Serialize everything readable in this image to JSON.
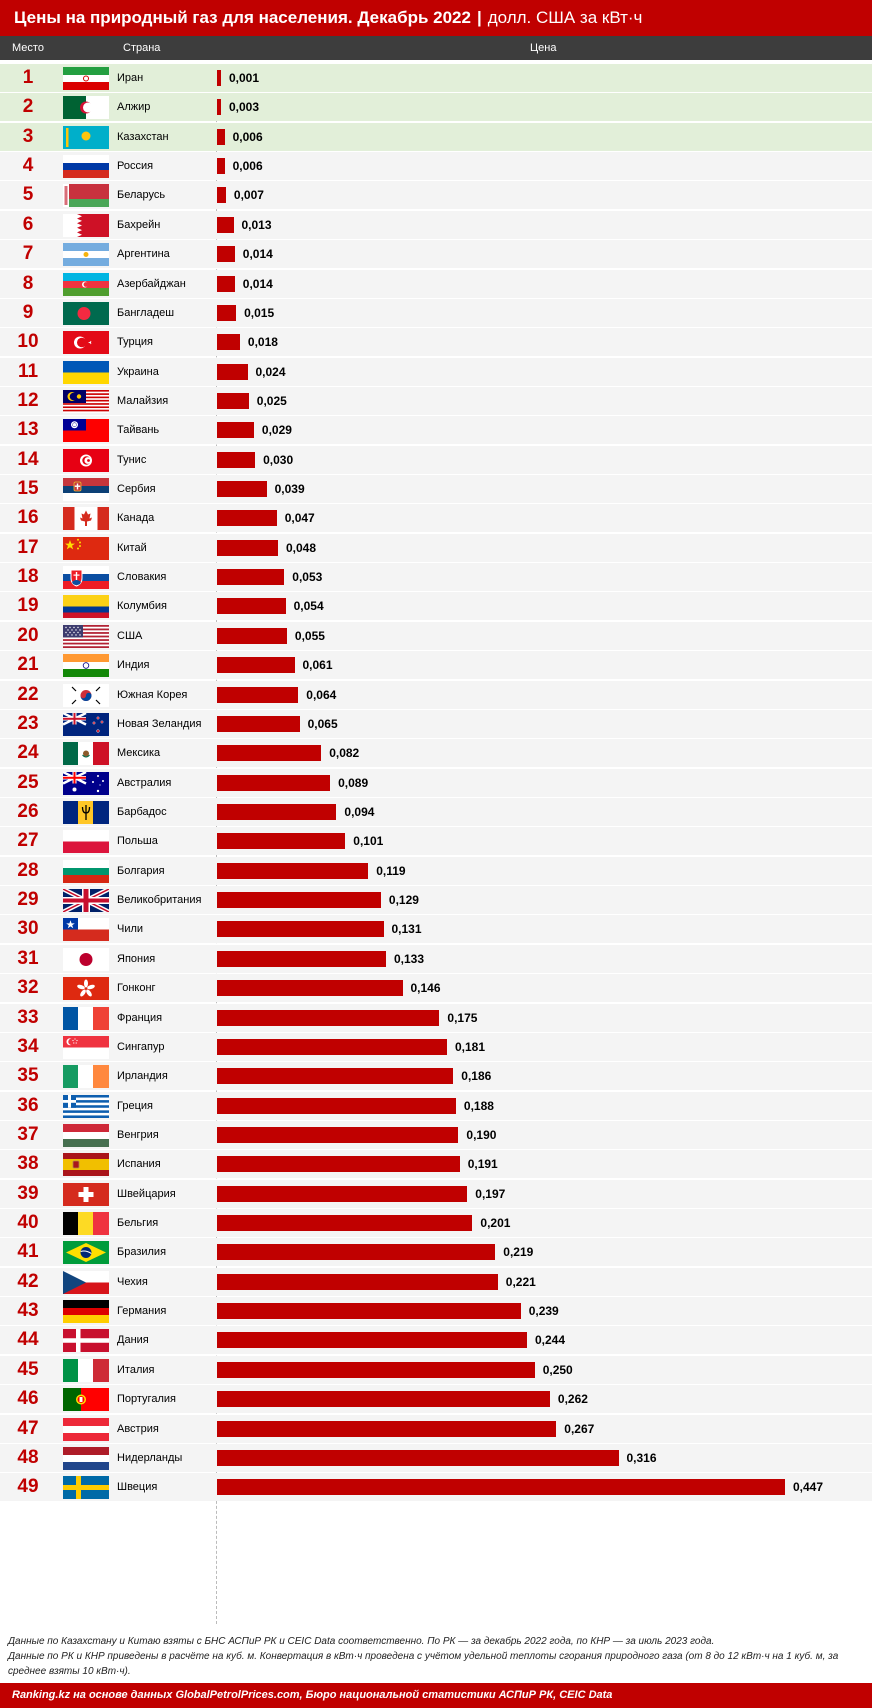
{
  "title": {
    "main": "Цены на природный газ для населения. Декабрь 2022",
    "separator": "|",
    "unit": "долл. США за кВт·ч"
  },
  "header": {
    "rank": "Место",
    "country": "Страна",
    "price": "Цена"
  },
  "chart_data": {
    "type": "bar",
    "orientation": "horizontal",
    "categories": [
      "Иран",
      "Алжир",
      "Казахстан",
      "Россия",
      "Беларусь",
      "Бахрейн",
      "Аргентина",
      "Азербайджан",
      "Бангладеш",
      "Турция",
      "Украина",
      "Малайзия",
      "Тайвань",
      "Тунис",
      "Сербия",
      "Канада",
      "Китай",
      "Словакия",
      "Колумбия",
      "США",
      "Индия",
      "Южная Корея",
      "Новая Зеландия",
      "Мексика",
      "Австралия",
      "Барбадос",
      "Польша",
      "Болгария",
      "Великобритания",
      "Чили",
      "Япония",
      "Гонконг",
      "Франция",
      "Сингапур",
      "Ирландия",
      "Греция",
      "Венгрия",
      "Испания",
      "Швейцария",
      "Бельгия",
      "Бразилия",
      "Чехия",
      "Германия",
      "Дания",
      "Италия",
      "Португалия",
      "Австрия",
      "Нидерланды",
      "Швеция"
    ],
    "values": [
      0.001,
      0.003,
      0.006,
      0.006,
      0.007,
      0.013,
      0.014,
      0.014,
      0.015,
      0.018,
      0.024,
      0.025,
      0.029,
      0.03,
      0.039,
      0.047,
      0.048,
      0.053,
      0.054,
      0.055,
      0.061,
      0.064,
      0.065,
      0.082,
      0.089,
      0.094,
      0.101,
      0.119,
      0.129,
      0.131,
      0.133,
      0.146,
      0.175,
      0.181,
      0.186,
      0.188,
      0.19,
      0.191,
      0.197,
      0.201,
      0.219,
      0.221,
      0.239,
      0.244,
      0.25,
      0.262,
      0.267,
      0.316,
      0.447
    ],
    "labels": [
      "0,001",
      "0,003",
      "0,006",
      "0,006",
      "0,007",
      "0,013",
      "0,014",
      "0,014",
      "0,015",
      "0,018",
      "0,024",
      "0,025",
      "0,029",
      "0,030",
      "0,039",
      "0,047",
      "0,048",
      "0,053",
      "0,054",
      "0,055",
      "0,061",
      "0,064",
      "0,065",
      "0,082",
      "0,089",
      "0,094",
      "0,101",
      "0,119",
      "0,129",
      "0,131",
      "0,133",
      "0,146",
      "0,175",
      "0,181",
      "0,186",
      "0,188",
      "0,190",
      "0,191",
      "0,197",
      "0,201",
      "0,219",
      "0,221",
      "0,239",
      "0,244",
      "0,250",
      "0,262",
      "0,267",
      "0,316",
      "0,447"
    ],
    "ranks": [
      "1",
      "2",
      "3",
      "4",
      "5",
      "6",
      "7",
      "8",
      "9",
      "10",
      "11",
      "12",
      "13",
      "14",
      "15",
      "16",
      "17",
      "18",
      "19",
      "20",
      "21",
      "22",
      "23",
      "24",
      "25",
      "26",
      "27",
      "28",
      "29",
      "30",
      "31",
      "32",
      "33",
      "34",
      "35",
      "36",
      "37",
      "38",
      "39",
      "40",
      "41",
      "42",
      "43",
      "44",
      "45",
      "46",
      "47",
      "48",
      "49"
    ],
    "flags": [
      "ir",
      "dz",
      "kz",
      "ru",
      "by",
      "bh",
      "ar",
      "az",
      "bd",
      "tr",
      "ua",
      "my",
      "tw",
      "tn",
      "rs",
      "ca",
      "cn",
      "sk",
      "co",
      "us",
      "in",
      "kr",
      "nz",
      "mx",
      "au",
      "bb",
      "pl",
      "bg",
      "gb",
      "cl",
      "jp",
      "hk",
      "fr",
      "sg",
      "ie",
      "gr",
      "hu",
      "es",
      "ch",
      "be",
      "br",
      "cz",
      "de",
      "dk",
      "it",
      "pt",
      "at",
      "nl",
      "se"
    ],
    "highlighted_top": 3,
    "xlim": [
      0,
      0.447
    ],
    "bar_color": "#c00000",
    "highlight_color": "#e2efd9",
    "grid": false
  },
  "notes": {
    "line1": "Данные по Казахстану и Китаю взяты с БНС АСПиР РК и CEIC Data соответственно. По РК — за декабрь 2022 года, по КНР — за июль 2023 года.",
    "line2": "Данные по РК и КНР приведены в расчёте на куб. м. Конвертация в кВт·ч проведена с учётом удельной теплоты сгорания природного газа (от 8 до 12 кВт·ч на 1 куб. м, за среднее взяты 10 кВт·ч)."
  },
  "footer": {
    "source": "Ranking.kz на основе данных GlobalPetrolPrices.com, Бюро национальной статистики АСПиР РК, CEIC Data"
  },
  "colors": {
    "brand": "#c00000",
    "header_bg": "#3d3d3d",
    "row_bg": "#f4f4f4"
  }
}
